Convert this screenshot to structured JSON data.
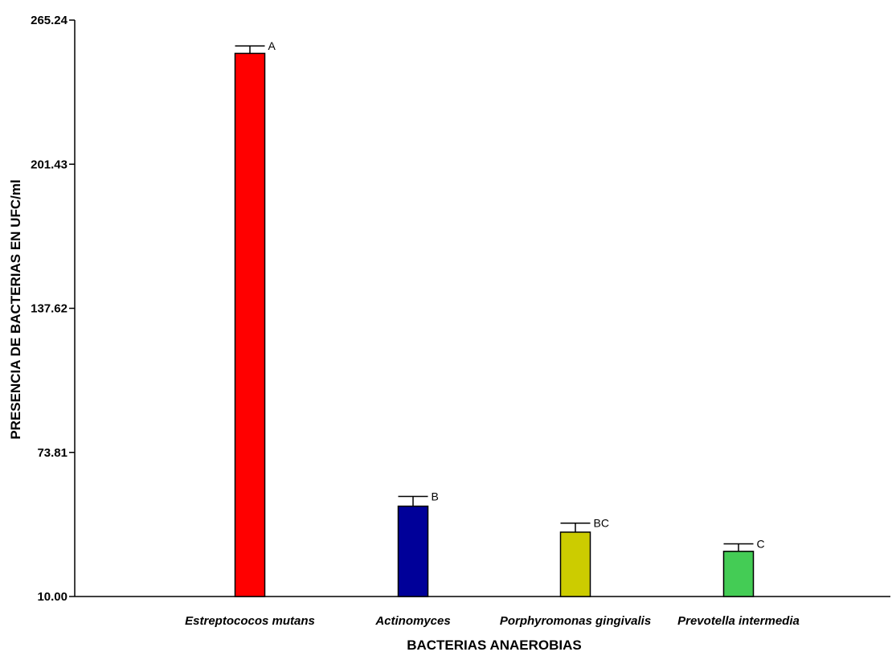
{
  "chart_data": {
    "type": "bar",
    "xlabel": "BACTERIAS ANAEROBIAS",
    "ylabel": "PRESENCIA DE BACTERIAS EN UFC/ml",
    "ylim": [
      10.0,
      265.24
    ],
    "yticks": [
      "10.00",
      "73.81",
      "137.62",
      "201.43",
      "265.24"
    ],
    "grid": false,
    "categories": [
      "Estreptococos mutans",
      "Actinomyces",
      "Porphyromonas gingivalis",
      "Prevotella intermedia"
    ],
    "values": [
      250.5,
      50.0,
      38.5,
      30.0
    ],
    "error_upper": [
      253.8,
      54.3,
      42.5,
      33.3
    ],
    "significance": [
      "A",
      "B",
      "BC",
      "C"
    ],
    "colors": [
      "#ff0000",
      "#000099",
      "#cccc00",
      "#44cc55"
    ]
  }
}
